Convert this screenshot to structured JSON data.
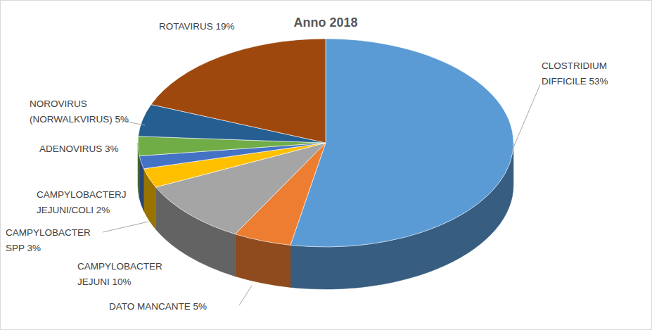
{
  "chart_data": {
    "type": "pie",
    "title": "Anno 2018",
    "categories": [
      "CLOSTRIDIUM DIFFICILE",
      "DATO MANCANTE",
      "CAMPYLOBACTER JEJUNI",
      "CAMPYLOBACTER SPP",
      "CAMPYLOBACTERJ JEJUNI/COLI",
      "ADENOVIRUS",
      "NOROVIRUS (NORWALKVIRUS)",
      "ROTAVIRUS"
    ],
    "values": [
      53,
      5,
      10,
      3,
      2,
      3,
      5,
      19
    ],
    "value_labels": [
      "53%",
      "5%",
      "10%",
      "3%",
      "2%",
      "3%",
      "5%",
      "19%"
    ],
    "colors": [
      "#5b9bd5",
      "#ed7d31",
      "#a5a5a5",
      "#ffc000",
      "#4472c4",
      "#70ad47",
      "#255e91",
      "#9e480e"
    ],
    "data_labels": true
  }
}
